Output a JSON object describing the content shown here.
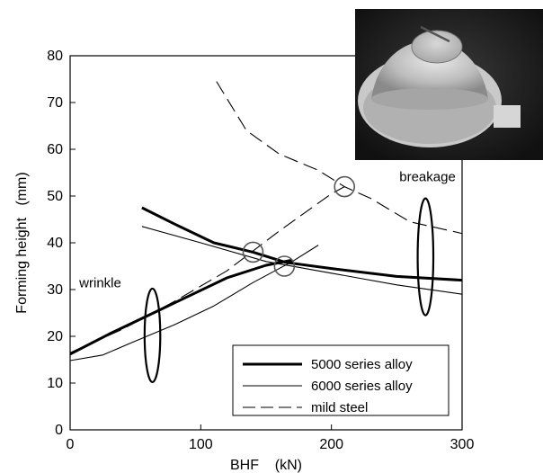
{
  "chart_data": {
    "type": "line",
    "title": "",
    "xlabel": "BHF    (kN)",
    "ylabel": "Forming height   (mm)",
    "xlim": [
      0,
      300
    ],
    "ylim": [
      0,
      80
    ],
    "x_ticks": [
      0,
      100,
      200,
      300
    ],
    "y_ticks": [
      0,
      10,
      20,
      30,
      40,
      50,
      60,
      70,
      80
    ],
    "grid": false,
    "legend_position": "bottom-right",
    "series": [
      {
        "name": "5000 series alloy",
        "style": "thick-solid",
        "segments": [
          [
            [
              0,
              16.2
            ],
            [
              30,
              20.5
            ],
            [
              60,
              24.5
            ],
            [
              90,
              28.5
            ],
            [
              120,
              32.5
            ],
            [
              150,
              35.2
            ],
            [
              170,
              36.3
            ]
          ],
          [
            [
              55,
              47.5
            ],
            [
              80,
              44
            ],
            [
              110,
              40
            ],
            [
              140,
              38
            ],
            [
              165,
              35.8
            ],
            [
              200,
              34.5
            ],
            [
              250,
              32.8
            ],
            [
              300,
              32
            ]
          ]
        ]
      },
      {
        "name": "6000 series alloy",
        "style": "thin-solid",
        "segments": [
          [
            [
              0,
              14.8
            ],
            [
              25,
              16
            ],
            [
              50,
              19
            ],
            [
              80,
              22.5
            ],
            [
              110,
              26.5
            ],
            [
              140,
              31.5
            ],
            [
              170,
              36
            ],
            [
              190,
              39.5
            ]
          ],
          [
            [
              55,
              43.5
            ],
            [
              100,
              40
            ],
            [
              150,
              36
            ],
            [
              200,
              33.5
            ],
            [
              250,
              31
            ],
            [
              300,
              29
            ]
          ]
        ]
      },
      {
        "name": "mild steel",
        "style": "dashed",
        "segments": [
          [
            [
              0,
              16.5
            ],
            [
              40,
              21.5
            ],
            [
              80,
              27.5
            ],
            [
              120,
              34
            ],
            [
              160,
              42.5
            ],
            [
              200,
              50.5
            ],
            [
              210,
              52
            ]
          ],
          [
            [
              112,
              74.5
            ],
            [
              135,
              64
            ],
            [
              160,
              59
            ],
            [
              190,
              55.5
            ],
            [
              210,
              52
            ],
            [
              230,
              49.5
            ],
            [
              260,
              44.5
            ],
            [
              300,
              42
            ]
          ]
        ]
      }
    ],
    "markers": [
      {
        "type": "circle",
        "x": 140,
        "y": 38
      },
      {
        "type": "circle",
        "x": 164,
        "y": 35
      },
      {
        "type": "circle",
        "x": 210,
        "y": 52
      }
    ],
    "annotations": [
      {
        "text": "wrinkle",
        "x": 7,
        "y": 30.5
      },
      {
        "text": "breakage",
        "x": 252,
        "y": 53.2
      }
    ],
    "ellipse_marks": [
      {
        "x": 63,
        "y": 20.2,
        "rx": 6,
        "ry": 10
      },
      {
        "x": 272,
        "y": 37,
        "rx": 6,
        "ry": 12.5
      }
    ],
    "inset_image": "photo of formed dome-shaped sheet-metal part"
  }
}
